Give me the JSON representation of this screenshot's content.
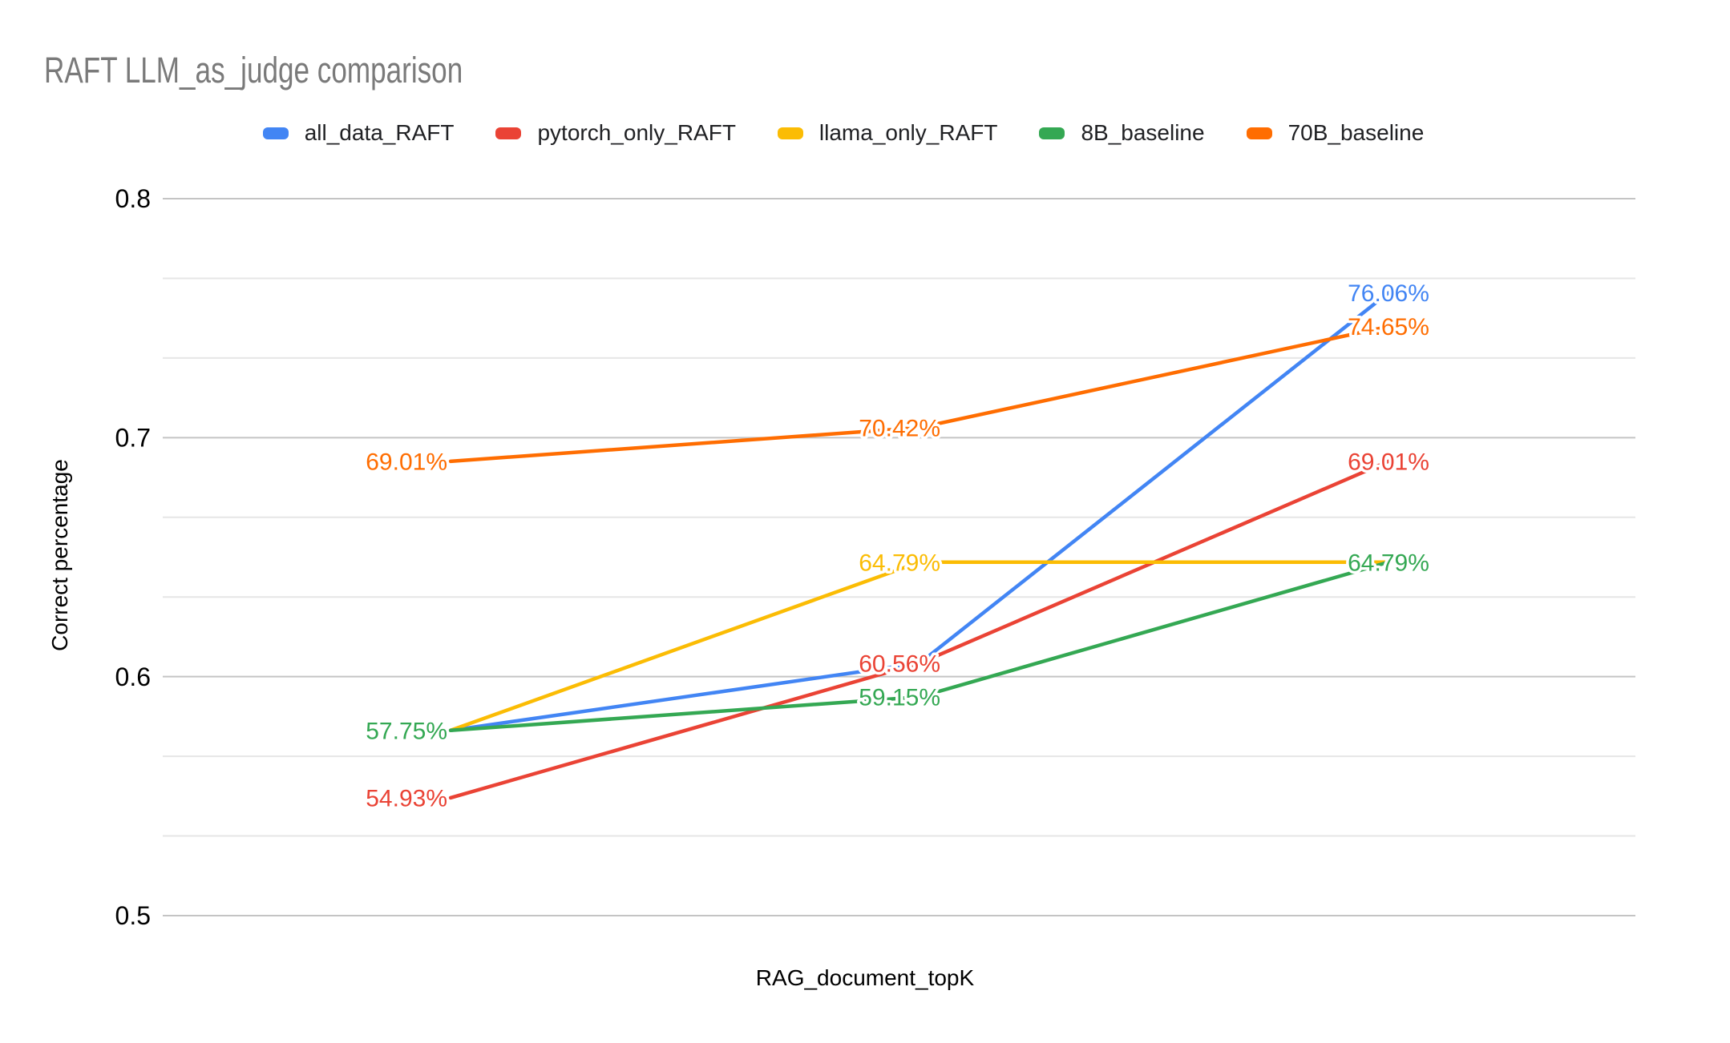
{
  "title": "RAFT LLM_as_judge comparison",
  "chart_data": {
    "type": "line",
    "title": "RAFT LLM_as_judge comparison",
    "xlabel": "RAG_document_topK",
    "ylabel": "Correct percentage",
    "x_tick_labels": [],
    "y_ticks": [
      0.5,
      0.6,
      0.7,
      0.8
    ],
    "ylim": [
      0.5,
      0.8
    ],
    "grid": {
      "major_color": "#c4c4c4",
      "minor_color": "#e6e6e6",
      "minors_per_major": 3
    },
    "legend_position": "top",
    "series": [
      {
        "name": "all_data_RAFT",
        "color": "#4285F4",
        "values": [
          57.75,
          60.56,
          76.06
        ],
        "labels": [
          null,
          null,
          "76.06%"
        ]
      },
      {
        "name": "pytorch_only_RAFT",
        "color": "#EA4335",
        "values": [
          54.93,
          60.56,
          69.01
        ],
        "labels": [
          "54.93%",
          "60.56%",
          "69.01%"
        ]
      },
      {
        "name": "llama_only_RAFT",
        "color": "#FBBC04",
        "values": [
          57.75,
          64.79,
          64.79
        ],
        "labels": [
          null,
          "64.79%",
          null
        ]
      },
      {
        "name": "8B_baseline",
        "color": "#34A853",
        "values": [
          57.75,
          59.15,
          64.79
        ],
        "labels": [
          "57.75%",
          "59.15%",
          "64.79%"
        ]
      },
      {
        "name": "70B_baseline",
        "color": "#FF6D01",
        "values": [
          69.01,
          70.42,
          74.65
        ],
        "labels": [
          "69.01%",
          "70.42%",
          "74.65%"
        ]
      }
    ]
  }
}
